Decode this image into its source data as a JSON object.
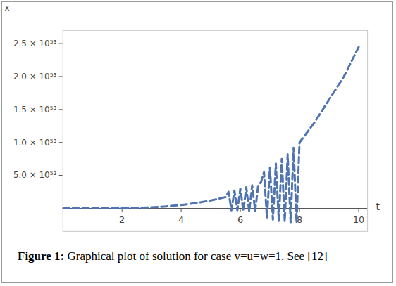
{
  "chart_data": {
    "type": "line",
    "caption": "Figure 1: Graphical plot of solution for case v=u=w=1. See [12]",
    "x_label": "t",
    "y_label": "x",
    "x": [
      0,
      1,
      2,
      3,
      3.5,
      4,
      4.5,
      5,
      5.5,
      5.6,
      5.7,
      5.8,
      5.9,
      6.0,
      6.1,
      6.2,
      6.3,
      6.4,
      6.5,
      6.6,
      6.7,
      6.8,
      6.9,
      7.0,
      7.1,
      7.2,
      7.3,
      7.4,
      7.5,
      7.6,
      7.7,
      7.8,
      7.9,
      8.0,
      8.5,
      9.0,
      9.5,
      10.0
    ],
    "series": [
      {
        "name": "x",
        "color": "#4f74b0",
        "line_style": "dashed",
        "values": [
          0,
          2e+50,
          5e+50,
          1.5e+51,
          3e+51,
          5e+51,
          8e+51,
          1.2e+52,
          1.7e+52,
          2.5e+52,
          -3e+51,
          2.7e+52,
          -3e+51,
          3e+52,
          -4e+51,
          3.2e+52,
          -5e+51,
          3.5e+52,
          -4e+51,
          3.4e+52,
          4e+52,
          5.5e+52,
          -1.5e+52,
          6.2e+52,
          -1.7e+52,
          6.8e+52,
          -1.9e+52,
          7.5e+52,
          -2e+52,
          8.2e+52,
          -2.2e+52,
          9.2e+52,
          -2.2e+52,
          1e+53,
          1.3e+53,
          1.65e+53,
          2e+53,
          2.45e+53
        ]
      }
    ],
    "xlim": [
      0,
      10.3
    ],
    "xticks": [
      2,
      4,
      6,
      8,
      10
    ],
    "ylim": [
      -3.5e+52,
      2.7e+53
    ],
    "yticks": [
      {
        "value": 5e+52,
        "label": "5.0 × 10⁵²"
      },
      {
        "value": 1e+53,
        "label": "1.0 × 10⁵³"
      },
      {
        "value": 1.5e+53,
        "label": "1.5 × 10⁵³"
      },
      {
        "value": 2e+53,
        "label": "2.0 × 10⁵³"
      },
      {
        "value": 2.5e+53,
        "label": "2.5 × 10⁵³"
      }
    ],
    "grid": false
  }
}
